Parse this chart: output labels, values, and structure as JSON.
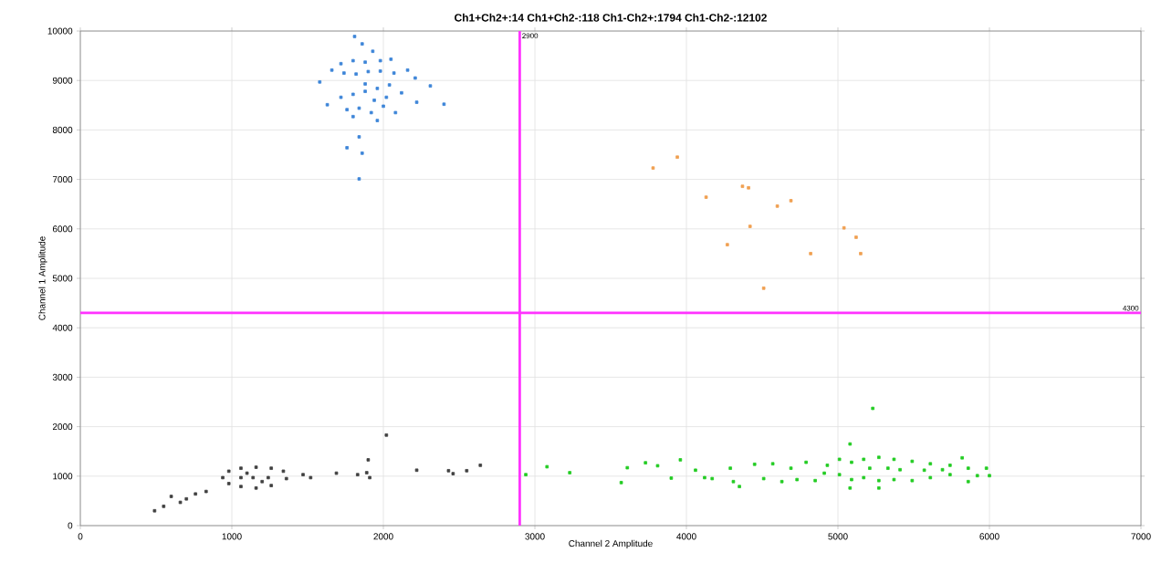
{
  "chart_data": {
    "type": "scatter",
    "title": "Ch1+Ch2+:14  Ch1+Ch2-:118  Ch1-Ch2+:1794  Ch1-Ch2-:12102",
    "xlabel": "Channel 2 Amplitude",
    "ylabel": "Channel 1 Amplitude",
    "xlim": [
      0,
      7000
    ],
    "ylim": [
      0,
      10000
    ],
    "xticks": [
      0,
      1000,
      2000,
      3000,
      4000,
      5000,
      6000,
      7000
    ],
    "yticks": [
      0,
      1000,
      2000,
      3000,
      4000,
      5000,
      6000,
      7000,
      8000,
      9000,
      10000
    ],
    "grid": true,
    "marker": "square",
    "ref_lines": [
      {
        "axis": "x",
        "value": 2900,
        "label": "2900",
        "color": "#ff33ff"
      },
      {
        "axis": "y",
        "value": 4300,
        "label": "4300",
        "color": "#ff33ff"
      }
    ],
    "series": [
      {
        "color": "#3d85d8",
        "x": [
          1810,
          1860,
          1930,
          1580,
          2310,
          2400,
          2220,
          1840,
          1760,
          1860,
          1840,
          1720,
          1800,
          1880,
          1980,
          2050,
          2160,
          1660,
          1740,
          1820,
          1900,
          1980,
          2070,
          2210,
          1630,
          1720,
          1800,
          1880,
          1960,
          2040,
          2120,
          1760,
          1840,
          1920,
          2000,
          2080,
          1800,
          1960,
          1880,
          1940,
          2020
        ],
        "values": [
          9890,
          9740,
          9590,
          8970,
          8890,
          8520,
          8560,
          7860,
          7640,
          7530,
          7010,
          9340,
          9400,
          9370,
          9400,
          9430,
          9210,
          9210,
          9150,
          9130,
          9180,
          9190,
          9150,
          9050,
          8510,
          8660,
          8720,
          8780,
          8840,
          8910,
          8750,
          8410,
          8440,
          8350,
          8480,
          8350,
          8270,
          8190,
          8930,
          8600,
          8660
        ]
      },
      {
        "color": "#f0a050",
        "x": [
          3780,
          3940,
          4130,
          4370,
          4410,
          4600,
          4690,
          4420,
          4270,
          5040,
          5120,
          4820,
          5150,
          4510
        ],
        "values": [
          7230,
          7450,
          6640,
          6860,
          6830,
          6460,
          6570,
          6050,
          5680,
          6020,
          5830,
          5500,
          5500,
          4800
        ]
      },
      {
        "color": "#22cc22",
        "x": [
          2940,
          3080,
          3230,
          3570,
          3610,
          3730,
          3810,
          3900,
          3960,
          4060,
          4120,
          4170,
          4290,
          4310,
          4350,
          4450,
          4510,
          4570,
          4630,
          4690,
          4730,
          4790,
          4850,
          4910,
          5080,
          5230,
          5080,
          5270,
          5860,
          5920,
          5980,
          6000,
          5820,
          4930,
          5010,
          5010,
          5090,
          5090,
          5170,
          5170,
          5270,
          5270,
          5370,
          5370,
          5490,
          5490,
          5610,
          5610,
          5740,
          5740,
          5860,
          5210,
          5410,
          5570,
          5330,
          5690
        ],
        "values": [
          1030,
          1190,
          1070,
          870,
          1170,
          1270,
          1210,
          960,
          1330,
          1120,
          970,
          950,
          1160,
          890,
          790,
          1240,
          950,
          1250,
          890,
          1160,
          930,
          1280,
          910,
          1060,
          1650,
          2370,
          760,
          760,
          890,
          1010,
          1160,
          1010,
          1370,
          1220,
          1340,
          1030,
          1280,
          930,
          1340,
          970,
          1380,
          910,
          1340,
          930,
          1300,
          910,
          1250,
          970,
          1220,
          1030,
          1160,
          1160,
          1130,
          1120,
          1160,
          1130
        ]
      },
      {
        "color": "#404040",
        "x": [
          490,
          550,
          600,
          660,
          700,
          760,
          830,
          940,
          980,
          980,
          1060,
          1060,
          1160,
          1160,
          1260,
          1260,
          1340,
          1360,
          1140,
          1060,
          1240,
          1100,
          1200,
          1470,
          1520,
          1690,
          1830,
          1890,
          1910,
          1900,
          2020,
          2220,
          2430,
          2460,
          2550,
          2640
        ],
        "values": [
          300,
          390,
          590,
          470,
          540,
          640,
          690,
          970,
          1100,
          850,
          1160,
          790,
          1180,
          760,
          1160,
          810,
          1100,
          950,
          970,
          970,
          970,
          1060,
          890,
          1030,
          970,
          1060,
          1030,
          1070,
          970,
          1330,
          1830,
          1120,
          1110,
          1050,
          1110,
          1220
        ]
      }
    ]
  }
}
